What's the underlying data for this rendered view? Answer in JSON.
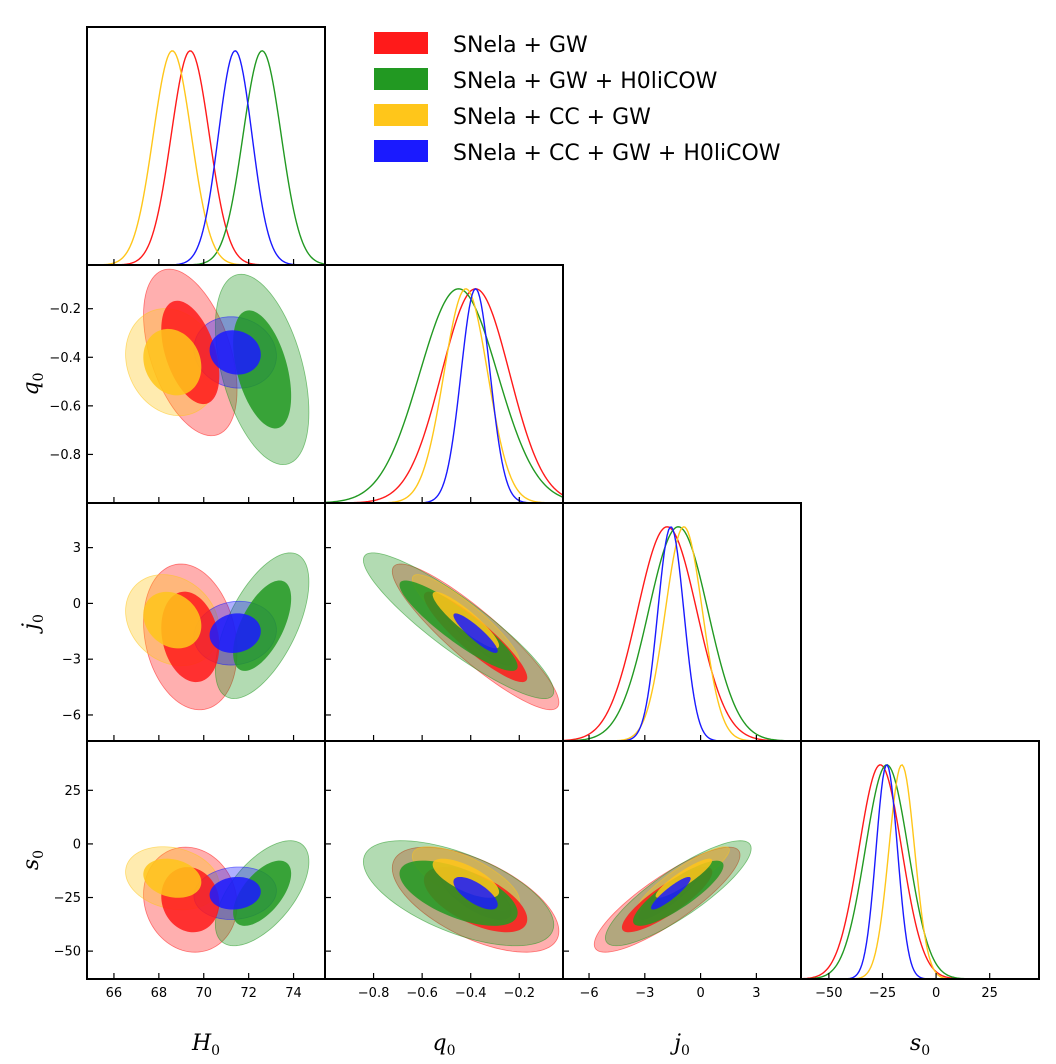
{
  "chart_data": {
    "type": "corner-plot",
    "parameters": [
      {
        "id": "H0",
        "symbol": "H",
        "sub": "0",
        "range": [
          64.8,
          75.4
        ],
        "ticks": [
          66,
          68,
          70,
          72,
          74
        ],
        "tick_labels": [
          "66",
          "68",
          "70",
          "72",
          "74"
        ]
      },
      {
        "id": "q0",
        "symbol": "q",
        "sub": "0",
        "range": [
          -1.0,
          -0.02
        ],
        "ticks": [
          -0.8,
          -0.6,
          -0.4,
          -0.2
        ],
        "tick_labels": [
          "−0.8",
          "−0.6",
          "−0.4",
          "−0.2"
        ]
      },
      {
        "id": "j0",
        "symbol": "j",
        "sub": "0",
        "range": [
          -7.4,
          5.4
        ],
        "ticks": [
          -6,
          -3,
          0,
          3
        ],
        "tick_labels": [
          "−6",
          "−3",
          "0",
          "3"
        ]
      },
      {
        "id": "s0",
        "symbol": "s",
        "sub": "0",
        "range": [
          -63,
          48
        ],
        "ticks": [
          -50,
          -25,
          0,
          25
        ],
        "tick_labels": [
          "−50",
          "−25",
          "0",
          "25"
        ]
      }
    ],
    "series": [
      {
        "name": "SNeIa + GW",
        "label": "SNela + GW",
        "color": "#ff1a1a",
        "mean": [
          69.4,
          -0.38,
          -1.8,
          -26
        ],
        "sigma": [
          0.85,
          0.14,
          1.6,
          10
        ]
      },
      {
        "name": "SNeIa + GW + H0LiCOW",
        "label": "SNela + GW + H0liCOW",
        "color": "#229922",
        "mean": [
          72.6,
          -0.45,
          -1.2,
          -23
        ],
        "sigma": [
          0.85,
          0.16,
          1.6,
          10
        ]
      },
      {
        "name": "SNeIa + CC + GW",
        "label": "SNela + CC + GW",
        "color": "#ffc61a",
        "mean": [
          68.6,
          -0.42,
          -0.9,
          -16
        ],
        "sigma": [
          0.85,
          0.09,
          1.0,
          6
        ]
      },
      {
        "name": "SNeIa + CC + GW + H0LiCOW",
        "label": "SNela + CC + GW + H0liCOW",
        "color": "#1a1aff",
        "mean": [
          71.4,
          -0.38,
          -1.6,
          -23
        ],
        "sigma": [
          0.75,
          0.06,
          0.7,
          5
        ]
      }
    ],
    "correlations": {
      "H0-q0": [
        -0.45,
        -0.45,
        -0.15,
        -0.1
      ],
      "H0-j0": [
        -0.2,
        0.6,
        -0.2,
        0.1
      ],
      "H0-s0": [
        -0.1,
        0.6,
        -0.2,
        0.1
      ],
      "q0-j0": [
        -0.9,
        -0.9,
        -0.9,
        -0.9
      ],
      "q0-s0": [
        -0.6,
        -0.6,
        -0.7,
        -0.7
      ],
      "j0-s0": [
        0.85,
        0.85,
        0.9,
        0.9
      ]
    },
    "legend_position": "top-right"
  }
}
